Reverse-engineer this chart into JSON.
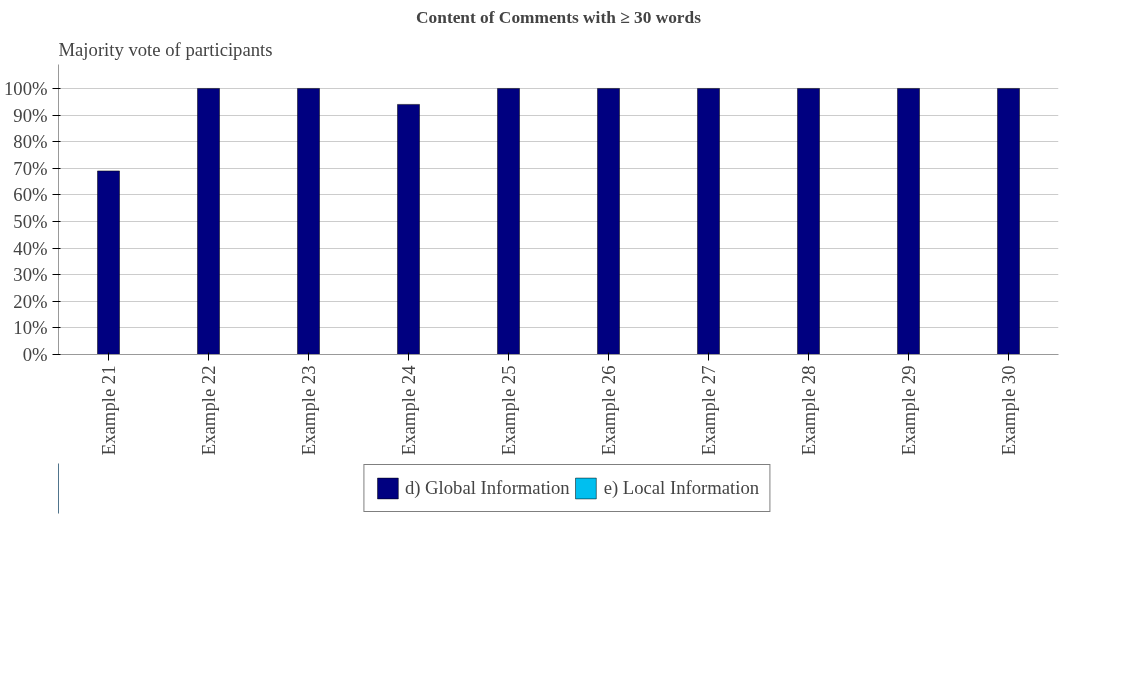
{
  "chart_data": {
    "type": "bar",
    "title": "Content of Comments with ≥ 30 words",
    "ylabel": "Majority vote of participants",
    "categories": [
      "Example 21",
      "Example 22",
      "Example 23",
      "Example 24",
      "Example 25",
      "Example 26",
      "Example 27",
      "Example 28",
      "Example 29",
      "Example 30"
    ],
    "series": [
      {
        "name": "d) Global Information",
        "color": "#000080",
        "values": [
          69,
          100,
          100,
          94,
          100,
          100,
          100,
          100,
          100,
          100
        ]
      },
      {
        "name": "e) Local Information",
        "color": "#00bfef",
        "values": [
          null,
          null,
          null,
          null,
          null,
          null,
          null,
          null,
          null,
          null
        ]
      }
    ],
    "ylim": [
      0,
      109
    ],
    "yticks": [
      {
        "value": 0,
        "label": "0%"
      },
      {
        "value": 10,
        "label": "10%"
      },
      {
        "value": 20,
        "label": "20%"
      },
      {
        "value": 30,
        "label": "30%"
      },
      {
        "value": 40,
        "label": "40%"
      },
      {
        "value": 50,
        "label": "50%"
      },
      {
        "value": 60,
        "label": "60%"
      },
      {
        "value": 70,
        "label": "70%"
      },
      {
        "value": 80,
        "label": "80%"
      },
      {
        "value": 90,
        "label": "90%"
      },
      {
        "value": 100,
        "label": "100%"
      }
    ],
    "grid": "y",
    "legend": "bottom"
  }
}
